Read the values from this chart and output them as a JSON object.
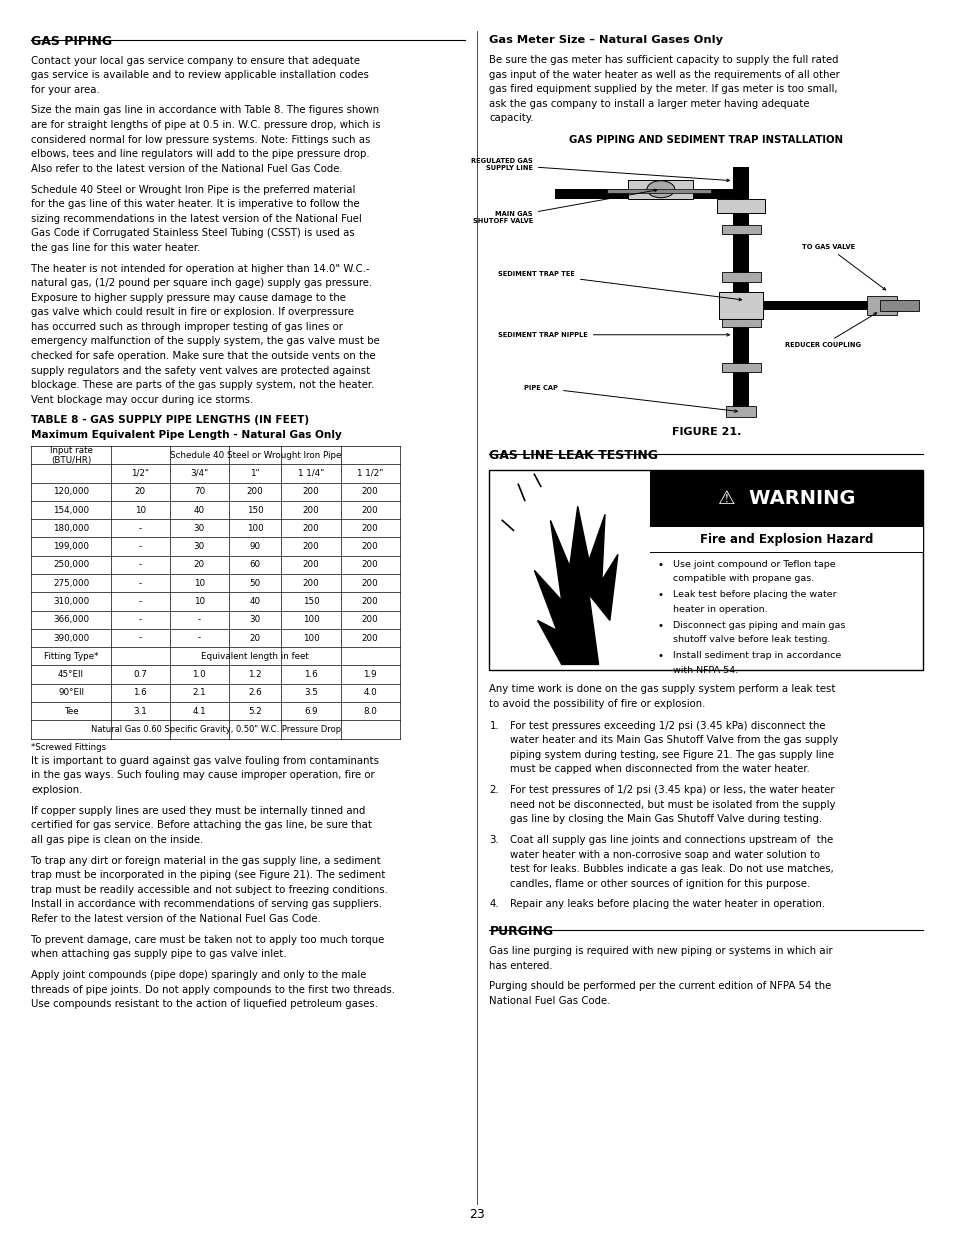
{
  "page_bg": "#ffffff",
  "section1_title": "GAS PIPING",
  "section1_para1": "Contact your local gas service company to ensure that adequate\ngas service is available and to review applicable installation codes\nfor your area.",
  "section1_para2": "Size the main gas line in accordance with Table 8. The figures shown\nare for straight lengths of pipe at 0.5 in. W.C. pressure drop, which is\nconsidered normal for low pressure systems. Note: Fittings such as\nelbows, tees and line regulators will add to the pipe pressure drop.\nAlso refer to the latest version of the National Fuel Gas Code.",
  "section1_para3": "Schedule 40 Steel or Wrought Iron Pipe is the preferred material\nfor the gas line of this water heater. It is imperative to follow the\nsizing recommendations in the latest version of the National Fuel\nGas Code if Corrugated Stainless Steel Tubing (CSST) is used as\nthe gas line for this water heater.",
  "section1_para4": "The heater is not intended for operation at higher than 14.0\" W.C.-\nnatural gas, (1/2 pound per square inch gage) supply gas pressure.\nExposure to higher supply pressure may cause damage to the\ngas valve which could result in fire or explosion. If overpressure\nhas occurred such as through improper testing of gas lines or\nemergency malfunction of the supply system, the gas valve must be\nchecked for safe operation. Make sure that the outside vents on the\nsupply regulators and the safety vent valves are protected against\nblockage. These are parts of the gas supply system, not the heater.\nVent blockage may occur during ice storms.",
  "table_title1": "TABLE 8 - GAS SUPPLY PIPE LENGTHS (IN FEET)",
  "table_title2": "Maximum Equivalent Pipe Length - Natural Gas Only",
  "table_header_span": "Schedule 40 Steel or Wrought Iron Pipe",
  "table_pipe_sizes": [
    "1/2\"",
    "3/4\"",
    "1\"",
    "1 1/4\"",
    "1 1/2\""
  ],
  "table_data": [
    [
      "120,000",
      "20",
      "70",
      "200",
      "200",
      "200"
    ],
    [
      "154,000",
      "10",
      "40",
      "150",
      "200",
      "200"
    ],
    [
      "180,000",
      "-",
      "30",
      "100",
      "200",
      "200"
    ],
    [
      "199,000",
      "-",
      "30",
      "90",
      "200",
      "200"
    ],
    [
      "250,000",
      "-",
      "20",
      "60",
      "200",
      "200"
    ],
    [
      "275,000",
      "-",
      "10",
      "50",
      "200",
      "200"
    ],
    [
      "310,000",
      "-",
      "10",
      "40",
      "150",
      "200"
    ],
    [
      "366,000",
      "-",
      "-",
      "30",
      "100",
      "200"
    ],
    [
      "390,000",
      "-",
      "-",
      "20",
      "100",
      "200"
    ]
  ],
  "table_fitting_header": "Fitting Type*",
  "table_fitting_span": "Equivalent length in feet",
  "table_fitting_data": [
    [
      "45°Ell",
      "0.7",
      "1.0",
      "1.2",
      "1.6",
      "1.9"
    ],
    [
      "90°Ell",
      "1.6",
      "2.1",
      "2.6",
      "3.5",
      "4.0"
    ],
    [
      "Tee",
      "3.1",
      "4.1",
      "5.2",
      "6.9",
      "8.0"
    ]
  ],
  "table_footnote1": "Natural Gas 0.60 Specific Gravity, 0.50\" W.C. Pressure Drop",
  "table_footnote2": "*Screwed Fittings",
  "para_after_table1": "It is important to guard against gas valve fouling from contaminants\nin the gas ways. Such fouling may cause improper operation, fire or\nexplosion.",
  "para_after_table2": "If copper supply lines are used they must be internally tinned and\ncertified for gas service. Before attaching the gas line, be sure that\nall gas pipe is clean on the inside.",
  "para_after_table3": "To trap any dirt or foreign material in the gas supply line, a sediment\ntrap must be incorporated in the piping (see Figure 21). The sediment\ntrap must be readily accessible and not subject to freezing conditions.\nInstall in accordance with recommendations of serving gas suppliers.\nRefer to the latest version of the National Fuel Gas Code.",
  "para_after_table4": "To prevent damage, care must be taken not to apply too much torque\nwhen attaching gas supply pipe to gas valve inlet.",
  "para_after_table5": "Apply joint compounds (pipe dope) sparingly and only to the male\nthreads of pipe joints. Do not apply compounds to the first two threads.\nUse compounds resistant to the action of liquefied petroleum gases.",
  "section2_title": "Gas Meter Size – Natural Gases Only",
  "section2_para1": "Be sure the gas meter has sufficient capacity to supply the full rated\ngas input of the water heater as well as the requirements of all other\ngas fired equipment supplied by the meter. If gas meter is too small,\nask the gas company to install a larger meter having adequate\ncapacity.",
  "figure_title": "GAS PIPING AND SEDIMENT TRAP INSTALLATION",
  "figure_caption": "FIGURE 21.",
  "section3_title": "GAS LINE LEAK TESTING",
  "warning_title": "WARNING",
  "warning_subtitle": "Fire and Explosion Hazard",
  "warning_bullets": [
    "Use joint compound or Teflon tape\ncompatible with propane gas.",
    "Leak test before placing the water\nheater in operation.",
    "Disconnect gas piping and main gas\nshutoff valve before leak testing.",
    "Install sediment trap in accordance\nwith NFPA 54."
  ],
  "section3_para1": "Any time work is done on the gas supply system perform a leak test\nto avoid the possibility of fire or explosion.",
  "section3_numbered": [
    "For test pressures exceeding 1/2 psi (3.45 kPa) disconnect the\nwater heater and its Main Gas Shutoff Valve from the gas supply\npiping system during testing, see Figure 21. The gas supply line\nmust be capped when disconnected from the water heater.",
    "For test pressures of 1/2 psi (3.45 kpa) or less, the water heater\nneed not be disconnected, but must be isolated from the supply\ngas line by closing the Main Gas Shutoff Valve during testing.",
    "Coat all supply gas line joints and connections upstream of  the\nwater heater with a non-corrosive soap and water solution to\ntest for leaks. Bubbles indicate a gas leak. Do not use matches,\ncandles, flame or other sources of ignition for this purpose.",
    "Repair any leaks before placing the water heater in operation."
  ],
  "section4_title": "PURGING",
  "section4_para1": "Gas line purging is required with new piping or systems in which air\nhas entered.",
  "section4_para2": "Purging should be performed per the current edition of NFPA 54 the\nNational Fuel Gas Code.",
  "page_number": "23"
}
